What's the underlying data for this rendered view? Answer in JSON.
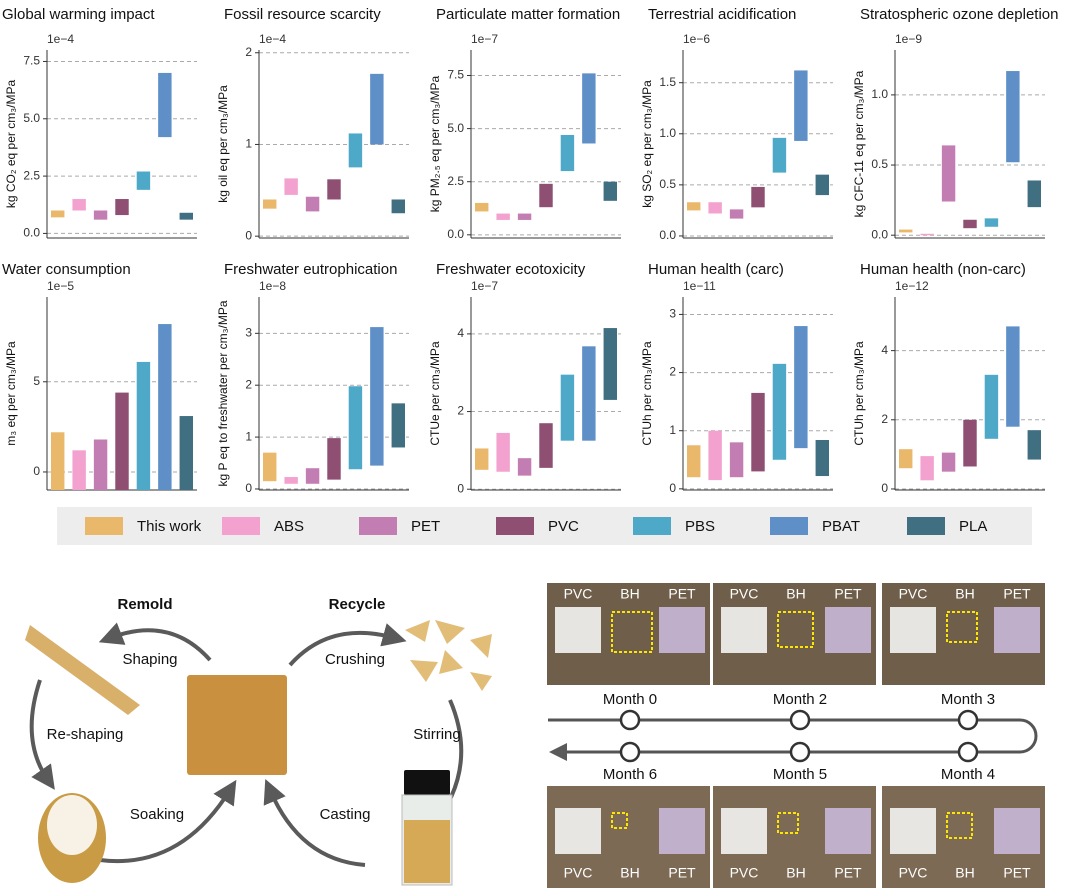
{
  "chart_data": [
    {
      "type": "range-bar",
      "title": "Global warming impact",
      "ylabel": "kg CO₂ eq per cm₃/MPa",
      "offset_label": "1e−4",
      "ylim": [
        -0.2,
        8.0
      ],
      "yticks": [
        {
          "value": 0,
          "label": "0.0"
        },
        2.5,
        {
          "value": 5,
          "label": "5.0"
        },
        7.5
      ],
      "low": [
        0.7,
        1.0,
        0.6,
        0.8,
        1.9,
        4.2,
        0.6
      ],
      "high": [
        1.0,
        1.5,
        1.0,
        1.5,
        2.7,
        7.0,
        0.9
      ]
    },
    {
      "type": "range-bar",
      "title": "Fossil resource scarcity",
      "ylabel": "kg oil eq per cm₃/MPa",
      "offset_label": "1e−4",
      "ylim": [
        -0.02,
        2.03
      ],
      "yticks": [
        0,
        1,
        2
      ],
      "low": [
        0.3,
        0.45,
        0.27,
        0.4,
        0.75,
        1.0,
        0.25
      ],
      "high": [
        0.4,
        0.63,
        0.43,
        0.62,
        1.12,
        1.77,
        0.4
      ]
    },
    {
      "type": "range-bar",
      "title": "Particulate matter formation",
      "ylabel": "kg PM₂.₅ eq per cm₃/MPa",
      "offset_label": "1e−7",
      "ylim": [
        -0.15,
        8.7
      ],
      "yticks": [
        {
          "value": 0,
          "label": "0.0"
        },
        2.5,
        {
          "value": 5,
          "label": "5.0"
        },
        7.5
      ],
      "low": [
        1.1,
        0.7,
        0.7,
        1.3,
        3.0,
        4.3,
        1.6
      ],
      "high": [
        1.5,
        1.0,
        1.0,
        2.4,
        4.7,
        7.6,
        2.5
      ]
    },
    {
      "type": "range-bar",
      "title": "Terrestrial acidification",
      "ylabel": "kg SO₂ eq per cm₃/MPa",
      "offset_label": "1e−6",
      "ylim": [
        -0.02,
        1.82
      ],
      "yticks": [
        {
          "value": 0,
          "label": "0.0"
        },
        0.5,
        {
          "value": 1,
          "label": "1.0"
        },
        1.5
      ],
      "low": [
        0.25,
        0.22,
        0.17,
        0.28,
        0.62,
        0.93,
        0.4
      ],
      "high": [
        0.33,
        0.33,
        0.26,
        0.48,
        0.96,
        1.62,
        0.6
      ]
    },
    {
      "type": "range-bar",
      "title": "Stratospheric ozone depletion",
      "ylabel": "kg CFC-11 eq per cm₃/MPa",
      "offset_label": "1e−9",
      "ylim": [
        -0.02,
        1.32
      ],
      "yticks": [
        {
          "value": 0,
          "label": "0.0"
        },
        0.5,
        {
          "value": 1,
          "label": "1.0"
        }
      ],
      "low": [
        0.02,
        0,
        0.24,
        0.05,
        0.06,
        0.52,
        0.2
      ],
      "high": [
        0.04,
        0.01,
        0.64,
        0.11,
        0.12,
        1.17,
        0.39
      ]
    },
    {
      "type": "range-bar",
      "title": "Water consumption",
      "ylabel": "m₃ eq per cm₃/MPa",
      "offset_label": "1e−5",
      "ylim": [
        -1.0,
        9.7
      ],
      "yticks": [
        0,
        5
      ],
      "low": [
        -1.0,
        -1.0,
        -1.0,
        -1.0,
        -1.0,
        -1.0,
        -1.0
      ],
      "high": [
        2.2,
        1.2,
        1.8,
        4.4,
        6.1,
        8.2,
        3.1
      ]
    },
    {
      "type": "range-bar",
      "title": "Freshwater eutrophication",
      "ylabel": "kg P eq to freshwater per cm₃/MPa",
      "offset_label": "1e−8",
      "ylim": [
        -0.02,
        3.7
      ],
      "yticks": [
        0,
        1,
        2,
        3
      ],
      "low": [
        0.15,
        0.1,
        0.1,
        0.18,
        0.38,
        0.45,
        0.8
      ],
      "high": [
        0.7,
        0.23,
        0.4,
        0.98,
        1.98,
        3.12,
        1.65
      ]
    },
    {
      "type": "range-bar",
      "title": "Freshwater ecotoxicity",
      "ylabel": "CTUe per cm₃/MPa",
      "offset_label": "1e−7",
      "ylim": [
        -0.02,
        4.95
      ],
      "yticks": [
        0,
        2,
        4
      ],
      "low": [
        0.5,
        0.45,
        0.35,
        0.55,
        1.25,
        1.25,
        2.3
      ],
      "high": [
        1.05,
        1.45,
        0.8,
        1.7,
        2.95,
        3.68,
        4.15
      ]
    },
    {
      "type": "range-bar",
      "title": "Human health (carc)",
      "ylabel": "CTUh per cm₃/MPa",
      "offset_label": "1e−11",
      "ylim": [
        -0.02,
        3.3
      ],
      "yticks": [
        0,
        1,
        2,
        3
      ],
      "low": [
        0.2,
        0.15,
        0.2,
        0.3,
        0.5,
        0.7,
        0.22
      ],
      "high": [
        0.75,
        1.0,
        0.8,
        1.65,
        2.15,
        2.8,
        0.84
      ]
    },
    {
      "type": "range-bar",
      "title": "Human health (non-carc)",
      "ylabel": "CTUh per cm₃/MPa",
      "offset_label": "1e−12",
      "ylim": [
        -0.03,
        5.55
      ],
      "yticks": [
        0,
        2,
        4
      ],
      "low": [
        0.6,
        0.25,
        0.5,
        0.65,
        1.45,
        1.8,
        0.85
      ],
      "high": [
        1.15,
        0.95,
        1.05,
        2.0,
        3.3,
        4.7,
        1.7
      ]
    }
  ],
  "legend": {
    "items": [
      {
        "name": "This work",
        "color": "#eab86b"
      },
      {
        "name": "ABS",
        "color": "#f3a2cf"
      },
      {
        "name": "PET",
        "color": "#c27db2"
      },
      {
        "name": "PVC",
        "color": "#8e4f72"
      },
      {
        "name": "PBS",
        "color": "#4ea9c9"
      },
      {
        "name": "PBAT",
        "color": "#5e90c7"
      },
      {
        "name": "PLA",
        "color": "#3f6f80"
      }
    ]
  },
  "diagram": {
    "remold": "Remold",
    "recycle": "Recycle",
    "shaping": "Shaping",
    "crushing": "Crushing",
    "reshaping": "Re-shaping",
    "stirring": "Stirring",
    "soaking": "Soaking",
    "casting": "Casting"
  },
  "timeline": {
    "months": [
      "Month  0",
      "Month 2",
      "Month 3",
      "Month 4",
      "Month 5",
      "Month 6"
    ],
    "photos": [
      [
        "PVC",
        "BH",
        "PET"
      ],
      [
        "PVC",
        "BH",
        "PET"
      ],
      [
        "PVC",
        "BH",
        "PET"
      ],
      [
        "PVC",
        "BH",
        "PET"
      ],
      [
        "PVC",
        "BH",
        "PET"
      ],
      [
        "PVC",
        "BH",
        "PET"
      ]
    ]
  }
}
